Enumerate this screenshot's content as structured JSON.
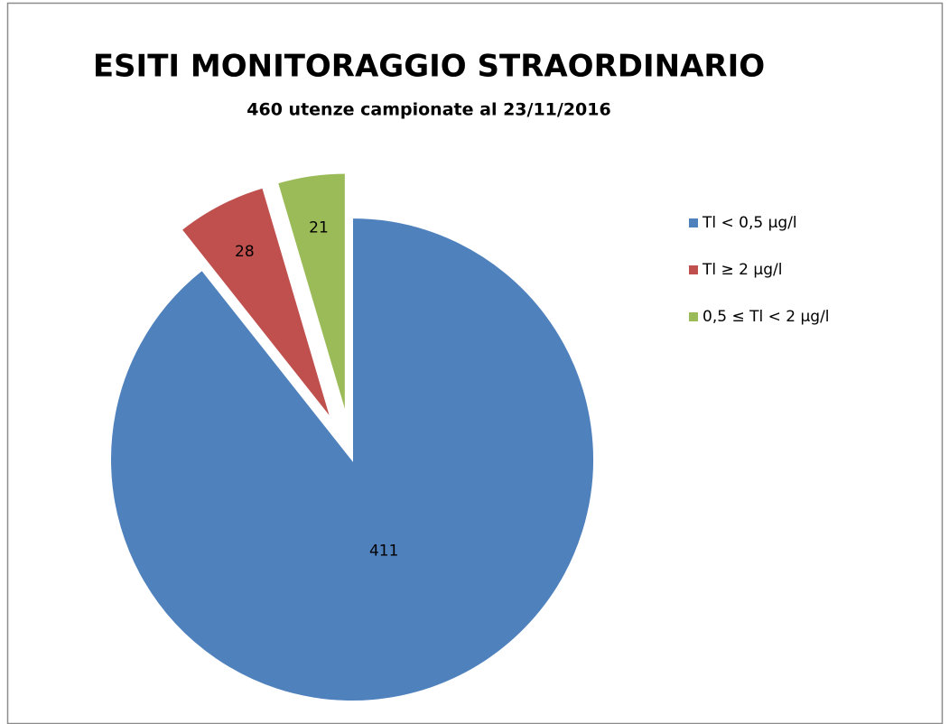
{
  "chart_data": {
    "type": "pie",
    "title": "ESITI MONITORAGGIO STRAORDINARIO",
    "subtitle": "460 utenze campionate al 23/11/2016",
    "categories": [
      "Tl < 0,5 µg/l",
      "Tl ≥ 2 µg/l",
      "0,5 ≤ Tl < 2 µg/l"
    ],
    "values": [
      411,
      28,
      21
    ],
    "colors": [
      "#4f81bd",
      "#c0504d",
      "#9bbb59"
    ],
    "exploded": [
      false,
      true,
      true
    ],
    "legend": "right"
  }
}
